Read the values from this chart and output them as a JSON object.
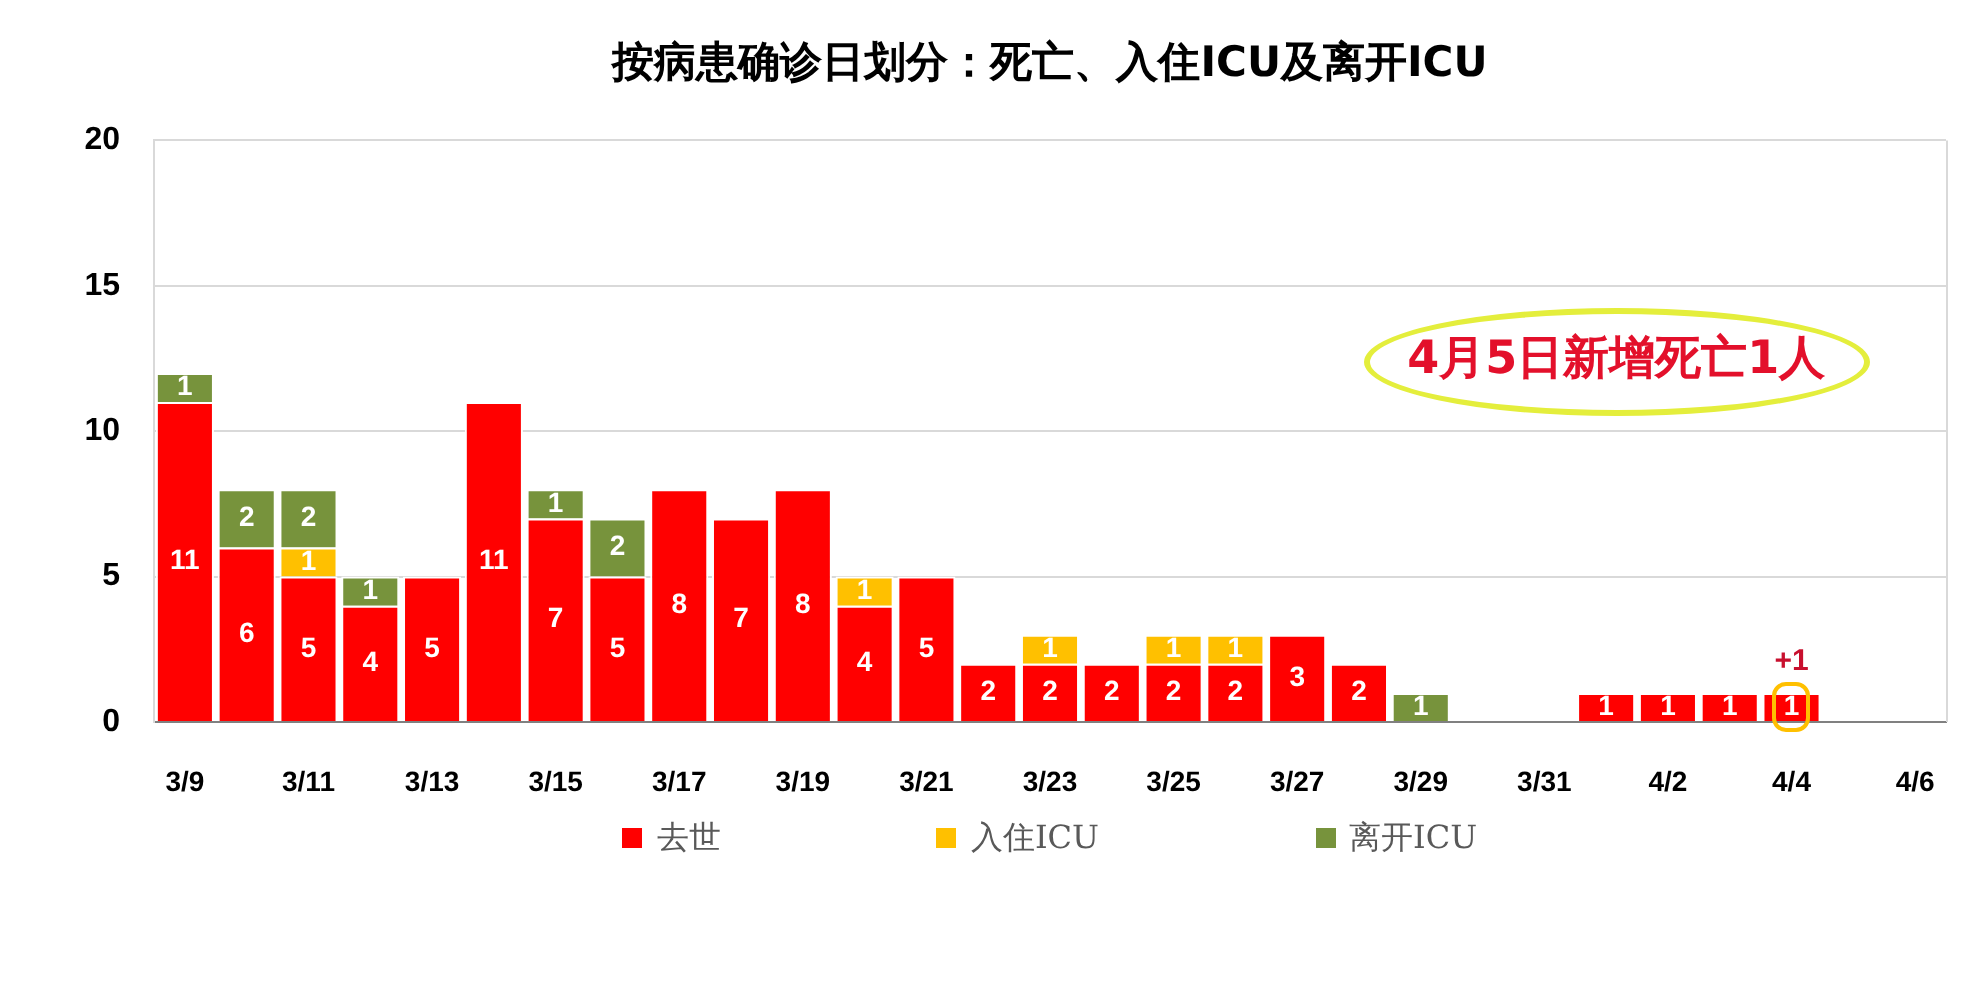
{
  "chart_data": {
    "type": "bar",
    "title": "按病患确诊日划分：死亡、入住ICU及离开ICU",
    "categories": [
      "3/9",
      null,
      "3/11",
      null,
      "3/13",
      null,
      "3/15",
      null,
      "3/17",
      null,
      "3/19",
      null,
      "3/21",
      null,
      "3/23",
      null,
      "3/25",
      null,
      "3/27",
      null,
      "3/29",
      null,
      "3/31",
      null,
      "4/2",
      null,
      "4/4",
      null,
      "4/6"
    ],
    "series": [
      {
        "name": "去世",
        "color": "#ff0000",
        "values": [
          11,
          6,
          5,
          4,
          5,
          11,
          7,
          5,
          8,
          7,
          8,
          4,
          5,
          2,
          2,
          2,
          2,
          2,
          3,
          2,
          null,
          null,
          null,
          1,
          1,
          1,
          1,
          null,
          null
        ]
      },
      {
        "name": "入住ICU",
        "color": "#ffc000",
        "values": [
          null,
          null,
          1,
          null,
          null,
          null,
          null,
          null,
          null,
          null,
          null,
          1,
          null,
          null,
          1,
          null,
          1,
          1,
          null,
          null,
          null,
          null,
          null,
          null,
          null,
          null,
          null,
          null,
          null
        ]
      },
      {
        "name": "离开ICU",
        "color": "#77933c",
        "values": [
          1,
          2,
          2,
          1,
          null,
          null,
          1,
          2,
          null,
          null,
          null,
          null,
          null,
          null,
          null,
          null,
          null,
          null,
          null,
          null,
          1,
          null,
          null,
          null,
          null,
          null,
          null,
          null,
          null
        ]
      }
    ],
    "stacked": true,
    "ylim": [
      0,
      20
    ],
    "yticks": [
      0,
      5,
      10,
      15,
      20
    ],
    "grid": "y",
    "legend": "bottom",
    "data_labels": true,
    "annotations": [
      "4月5日新增死亡1人",
      {
        "text": "+1",
        "x": "4/4",
        "y": 1
      }
    ]
  }
}
